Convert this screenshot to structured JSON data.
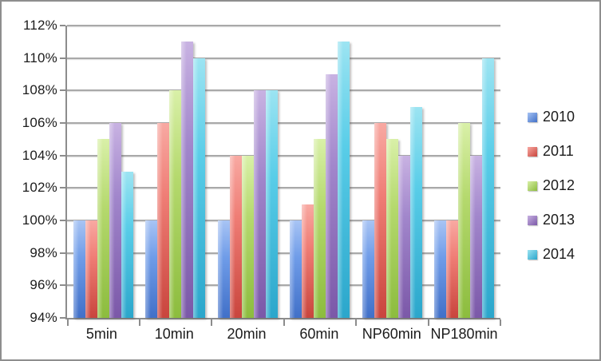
{
  "chart_data": {
    "type": "bar",
    "title": "",
    "xlabel": "",
    "ylabel": "",
    "grid": true,
    "legend_position": "right",
    "ylim": [
      94,
      112
    ],
    "ytick_step": 2,
    "ytick_format": "percent",
    "ytick_labels": [
      "94%",
      "96%",
      "98%",
      "100%",
      "102%",
      "104%",
      "106%",
      "108%",
      "110%",
      "112%"
    ],
    "categories": [
      "5min",
      "10min",
      "20min",
      "60min",
      "NP60min",
      "NP180min"
    ],
    "series": [
      {
        "name": "2010",
        "color": "#6f9ce8",
        "color_light": "#a8c4f4",
        "color_dark": "#4170c8",
        "values": [
          100,
          100,
          100,
          100,
          100,
          100
        ]
      },
      {
        "name": "2011",
        "color": "#ef7d75",
        "color_light": "#f8a9a2",
        "color_dark": "#c9453d",
        "values": [
          100,
          106,
          104,
          101,
          106,
          100
        ]
      },
      {
        "name": "2012",
        "color": "#b5d96e",
        "color_light": "#d9f0a8",
        "color_dark": "#8cbc3e",
        "values": [
          105,
          108,
          104,
          105,
          105,
          106
        ]
      },
      {
        "name": "2013",
        "color": "#a186cb",
        "color_light": "#c8b2e2",
        "color_dark": "#7b58a8",
        "values": [
          106,
          111,
          108,
          109,
          104,
          104
        ]
      },
      {
        "name": "2014",
        "color": "#59cde8",
        "color_light": "#9ce4f2",
        "color_dark": "#2ba6cb",
        "values": [
          103,
          110,
          108,
          111,
          107,
          110
        ]
      }
    ]
  },
  "style_colors": {
    "gridline": "#a9a9a9",
    "axis": "#8c8c8c",
    "text": "#1c1c1c",
    "frame_border": "#8e8e8e",
    "background": "#ffffff"
  }
}
